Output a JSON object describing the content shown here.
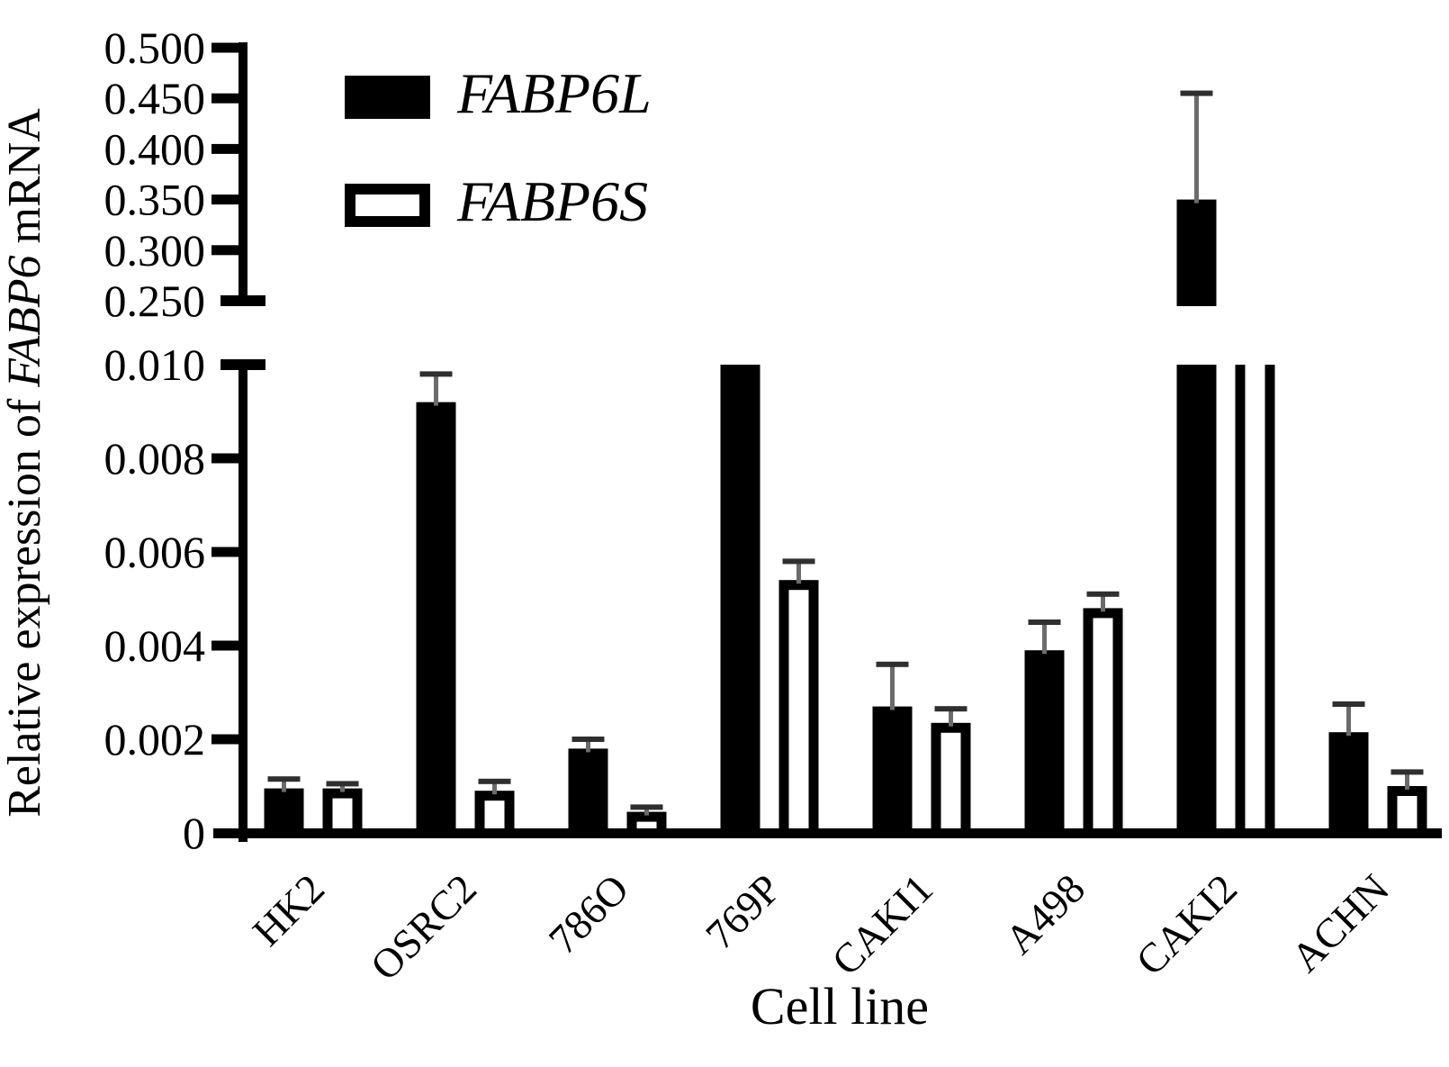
{
  "figure": {
    "background": "#ffffff",
    "ink": "#000000",
    "error_stem_color": "#6b6b6b",
    "error_cap_color": "#2f2f2f"
  },
  "chart_data": {
    "type": "bar",
    "title": "",
    "xlabel": "Cell line",
    "ylabel": {
      "prefix": "Relative expression of ",
      "italic": "FABP6",
      "suffix": " mRNA"
    },
    "grid": false,
    "legend_position": "top-left-inside",
    "axis_break": {
      "between": [
        0.01,
        0.25
      ]
    },
    "upper_axis": {
      "range": [
        0.25,
        0.5
      ],
      "tick_values": [
        0.5,
        0.45,
        0.4,
        0.35,
        0.3,
        0.25
      ],
      "tick_labels": [
        "0.500",
        "0.450",
        "0.400",
        "0.350",
        "0.300",
        "0.250"
      ]
    },
    "lower_axis": {
      "range": [
        0,
        0.01
      ],
      "tick_values": [
        0.01,
        0.008,
        0.006,
        0.004,
        0.002,
        0
      ],
      "tick_labels": [
        "0.010",
        "0.008",
        "0.006",
        "0.004",
        "0.002",
        "0"
      ]
    },
    "categories": [
      "HK2",
      "OSRC2",
      "786O",
      "769P",
      "CAKI1",
      "A498",
      "CAKI2",
      "ACHN"
    ],
    "series": [
      {
        "name": "FABP6L",
        "style": "filled",
        "values": [
          0.00095,
          0.0092,
          0.0018,
          0.0105,
          0.0027,
          0.0039,
          0.35,
          0.00215
        ],
        "errors": [
          0.0002,
          0.0006,
          0.0002,
          null,
          0.0009,
          0.0006,
          0.105,
          0.0006
        ],
        "clipped_at_break": [
          false,
          false,
          false,
          true,
          false,
          false,
          false,
          false
        ]
      },
      {
        "name": "FABP6S",
        "style": "outlined",
        "values": [
          0.00095,
          0.0009,
          0.00045,
          0.0054,
          0.00235,
          0.0048,
          0.0105,
          0.001
        ],
        "errors": [
          0.0001,
          0.0002,
          0.0001,
          0.0004,
          0.0003,
          0.0003,
          null,
          0.0003
        ],
        "clipped_at_break": [
          false,
          false,
          false,
          false,
          false,
          false,
          true,
          false
        ]
      }
    ]
  }
}
